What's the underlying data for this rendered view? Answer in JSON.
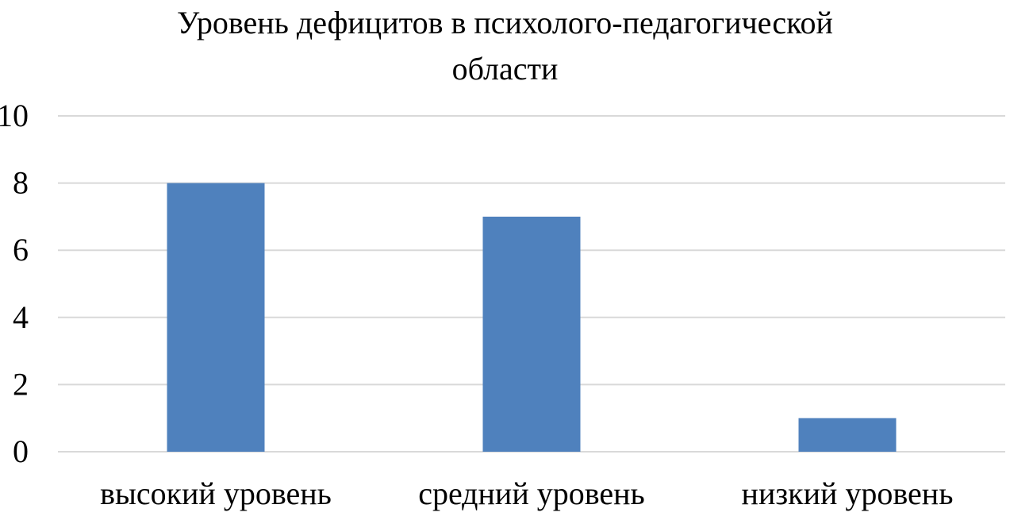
{
  "chart_data": {
    "type": "bar",
    "title_lines": [
      "Уровень дефицитов в психолого-педагогической",
      "области"
    ],
    "categories": [
      "высокий уровень",
      "средний уровень",
      "низкий уровень"
    ],
    "series": [
      {
        "values": [
          8,
          7,
          1
        ]
      }
    ],
    "ylim": [
      0,
      10
    ],
    "yticks": [
      "0",
      "2",
      "4",
      "6",
      "8",
      "10"
    ],
    "xlabel": "",
    "ylabel": "",
    "grid": true,
    "legend": "none",
    "colors": {
      "bar": "#4F81BD",
      "grid": "#D9D9D9",
      "axis": "#D9D9D9"
    }
  }
}
